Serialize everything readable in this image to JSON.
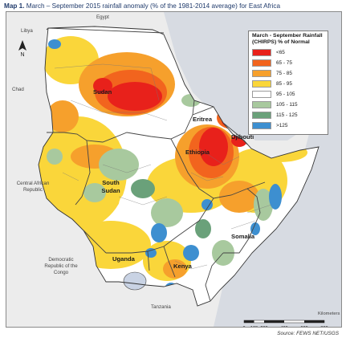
{
  "title": {
    "prefix": "Map 1.",
    "text": " March – September 2015 rainfall anomaly (% of the 1981-2014 average) for East Africa"
  },
  "legend": {
    "title": "March - September Rainfall (CHIRPS) % of Normal",
    "classes": [
      {
        "label": "<65",
        "color": "#e8211b"
      },
      {
        "label": "65 - 75",
        "color": "#f2641e"
      },
      {
        "label": "75 - 85",
        "color": "#f6a02c"
      },
      {
        "label": "85 - 95",
        "color": "#fad63a"
      },
      {
        "label": "95 - 105",
        "color": "#ffffff"
      },
      {
        "label": "105 - 115",
        "color": "#a8c99e"
      },
      {
        "label": "115 - 125",
        "color": "#6aa17a"
      },
      {
        "label": ">125",
        "color": "#3d8fd0"
      }
    ]
  },
  "labels": {
    "egypt": "Egypt",
    "libya": "Libya",
    "chad": "Chad",
    "sudan": "Sudan",
    "eritrea": "Eritrea",
    "djibouti": "Djibouti",
    "ethiopia": "Ethiopia",
    "south_sudan": "South Sudan",
    "car": "Central African Republic",
    "somalia": "Somalia",
    "uganda": "Uganda",
    "kenya": "Kenya",
    "drc": "Democratic Republic of the Congo",
    "tanzania": "Tanzania"
  },
  "scale": {
    "unit": "Kilometers",
    "ticks": [
      "0",
      "100",
      "200",
      "400",
      "600",
      "800"
    ]
  },
  "north_arrow": "N",
  "source": "Source: FEWS NET/USGS",
  "colors": {
    "land_outside": "#ececec",
    "sea": "#d7dbe2",
    "border": "#444444"
  }
}
